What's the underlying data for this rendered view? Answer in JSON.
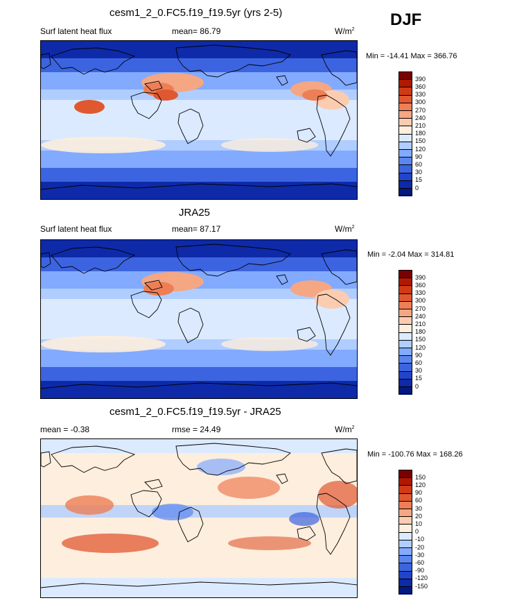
{
  "header": {
    "season": "DJF"
  },
  "panels": [
    {
      "title": "cesm1_2_0.FC5.f19_f19.5yr (yrs 2-5)",
      "left_label": "Surf latent heat flux",
      "center_label": "mean=  86.79",
      "units_base": "W/m",
      "units_exp": "2",
      "minmax": "Min = -14.41 Max = 366.76"
    },
    {
      "title": "JRA25",
      "left_label": "Surf latent heat flux",
      "center_label": "mean=  87.17",
      "units_base": "W/m",
      "units_exp": "2",
      "minmax": "Min =  -2.04 Max = 314.81"
    },
    {
      "title": "cesm1_2_0.FC5.f19_f19.5yr - JRA25",
      "left_label": "mean =  -0.38",
      "center_label": "rmse =  24.49",
      "units_base": "W/m",
      "units_exp": "2",
      "minmax": "Min = -100.76 Max = 168.26"
    }
  ],
  "colorbars": {
    "flux": {
      "labels": [
        "390",
        "360",
        "330",
        "300",
        "270",
        "240",
        "210",
        "180",
        "150",
        "120",
        "90",
        "60",
        "30",
        "15",
        "0"
      ],
      "colors": [
        "#7a0000",
        "#b01800",
        "#d03a15",
        "#e05830",
        "#ee7e55",
        "#f5a683",
        "#fbccb0",
        "#fdeedd",
        "#dbeaff",
        "#b0cdff",
        "#82aaff",
        "#5a86f0",
        "#3c64e0",
        "#2244cc",
        "#0e2aa8",
        "#001a80"
      ]
    },
    "diff": {
      "labels": [
        "150",
        "120",
        "90",
        "60",
        "30",
        "20",
        "10",
        "0",
        "-10",
        "-20",
        "-30",
        "-60",
        "-90",
        "-120",
        "-150"
      ],
      "colors": [
        "#7a0000",
        "#b01800",
        "#d03a15",
        "#e05830",
        "#ee7e55",
        "#f5a683",
        "#fbccb0",
        "#fdeedd",
        "#dbeaff",
        "#b0cdff",
        "#82aaff",
        "#5a86f0",
        "#3c64e0",
        "#2244cc",
        "#0e2aa8",
        "#001a80"
      ]
    }
  },
  "chart_data": [
    {
      "type": "heatmap",
      "title": "cesm1_2_0.FC5.f19_f19.5yr (yrs 2-5)",
      "variable": "Surf latent heat flux",
      "units": "W/m2",
      "mean": 86.79,
      "min": -14.41,
      "max": 366.76,
      "levels": [
        0,
        15,
        30,
        60,
        90,
        120,
        150,
        180,
        210,
        240,
        270,
        300,
        330,
        360,
        390
      ]
    },
    {
      "type": "heatmap",
      "title": "JRA25",
      "variable": "Surf latent heat flux",
      "units": "W/m2",
      "mean": 87.17,
      "min": -2.04,
      "max": 314.81,
      "levels": [
        0,
        15,
        30,
        60,
        90,
        120,
        150,
        180,
        210,
        240,
        270,
        300,
        330,
        360,
        390
      ]
    },
    {
      "type": "heatmap",
      "title": "cesm1_2_0.FC5.f19_f19.5yr - JRA25",
      "units": "W/m2",
      "mean": -0.38,
      "rmse": 24.49,
      "min": -100.76,
      "max": 168.26,
      "levels": [
        -150,
        -120,
        -90,
        -60,
        -30,
        -20,
        -10,
        0,
        10,
        20,
        30,
        60,
        90,
        120,
        150
      ]
    }
  ]
}
